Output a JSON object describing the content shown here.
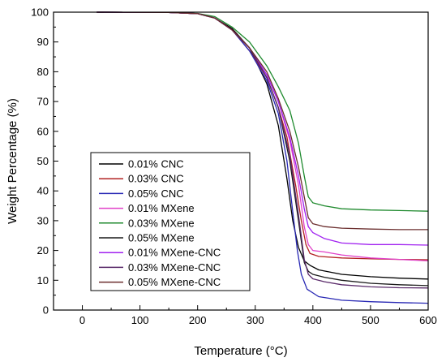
{
  "chart_data": {
    "type": "line",
    "xlabel": "Temperature (°C)",
    "ylabel": "Weight Percentage (%)",
    "xlim": [
      -50,
      600
    ],
    "ylim": [
      0,
      100
    ],
    "xticks": [
      0,
      100,
      200,
      300,
      400,
      500,
      600
    ],
    "yticks": [
      0,
      10,
      20,
      30,
      40,
      50,
      60,
      70,
      80,
      90,
      100
    ],
    "grid": false,
    "legend_position": "lower-left",
    "series": [
      {
        "name": "0.01% CNC",
        "color": "#000000",
        "x": [
          25,
          150,
          200,
          230,
          260,
          290,
          320,
          340,
          355,
          365,
          375,
          385,
          395,
          410,
          450,
          500,
          550,
          600
        ],
        "y": [
          100,
          99.9,
          99.5,
          98,
          94.5,
          88,
          76,
          62,
          44,
          30,
          21,
          16.5,
          15,
          13.5,
          12,
          11.2,
          10.7,
          10.4
        ]
      },
      {
        "name": "0.03% CNC",
        "color": "#b22222",
        "x": [
          25,
          150,
          200,
          230,
          260,
          290,
          320,
          340,
          355,
          370,
          380,
          388,
          395,
          410,
          450,
          500,
          550,
          600
        ],
        "y": [
          100,
          99.9,
          99.5,
          98,
          94,
          87,
          78,
          68,
          58,
          42,
          30,
          22,
          19,
          18,
          17.5,
          17.2,
          17,
          16.9
        ]
      },
      {
        "name": "0.05% CNC",
        "color": "#2828b4",
        "x": [
          25,
          150,
          200,
          230,
          260,
          290,
          320,
          340,
          355,
          365,
          373,
          380,
          390,
          410,
          450,
          500,
          550,
          600
        ],
        "y": [
          100,
          99.9,
          99.5,
          98,
          94,
          87,
          77,
          66,
          50,
          33,
          20,
          12,
          7,
          4.5,
          3.3,
          2.8,
          2.5,
          2.3
        ]
      },
      {
        "name": "0.01% MXene",
        "color": "#e040c8",
        "x": [
          25,
          150,
          200,
          230,
          260,
          290,
          320,
          340,
          360,
          375,
          385,
          392,
          400,
          420,
          450,
          500,
          550,
          600
        ],
        "y": [
          100,
          99.9,
          99.5,
          98,
          94,
          88,
          79,
          70,
          57,
          42,
          28,
          22,
          20,
          19.5,
          18.5,
          17.5,
          17,
          16.5
        ]
      },
      {
        "name": "0.03% MXene",
        "color": "#1f8a2e",
        "x": [
          25,
          150,
          200,
          230,
          260,
          290,
          320,
          340,
          360,
          375,
          385,
          392,
          400,
          420,
          450,
          500,
          550,
          600
        ],
        "y": [
          100,
          99.9,
          99.6,
          98.5,
          95,
          90,
          82,
          75,
          67,
          56,
          45,
          38,
          36,
          35,
          34,
          33.6,
          33.4,
          33.2
        ]
      },
      {
        "name": "0.05% MXene",
        "color": "#1a1a1a",
        "x": [
          25,
          150,
          200,
          230,
          260,
          290,
          320,
          340,
          360,
          375,
          385,
          392,
          400,
          420,
          450,
          500,
          550,
          600
        ],
        "y": [
          100,
          99.9,
          99.5,
          98,
          94,
          88,
          78,
          68,
          50,
          30,
          16,
          13,
          12,
          11,
          10,
          9,
          8.5,
          8.2
        ]
      },
      {
        "name": "0.01% MXene-CNC",
        "color": "#a020f0",
        "x": [
          25,
          150,
          200,
          230,
          260,
          290,
          320,
          340,
          360,
          375,
          385,
          392,
          400,
          420,
          450,
          500,
          550,
          600
        ],
        "y": [
          100,
          99.9,
          99.5,
          98,
          94,
          88,
          79,
          70,
          58,
          45,
          34,
          28,
          26,
          24,
          22.5,
          22,
          22,
          21.8
        ]
      },
      {
        "name": "0.03% MXene-CNC",
        "color": "#5a2a6a",
        "x": [
          25,
          150,
          200,
          230,
          260,
          290,
          320,
          340,
          360,
          375,
          385,
          392,
          400,
          420,
          450,
          500,
          550,
          600
        ],
        "y": [
          100,
          99.9,
          99.5,
          98,
          94,
          88,
          78,
          68,
          52,
          32,
          17,
          12,
          10.5,
          9.5,
          8.5,
          7.8,
          7.5,
          7.4
        ]
      },
      {
        "name": "0.05% MXene-CNC",
        "color": "#6b2e2e",
        "x": [
          25,
          150,
          200,
          230,
          260,
          290,
          320,
          340,
          360,
          375,
          385,
          392,
          400,
          420,
          450,
          500,
          550,
          600
        ],
        "y": [
          100,
          99.9,
          99.5,
          98,
          94,
          88,
          80,
          71,
          60,
          48,
          38,
          31,
          29,
          28,
          27.5,
          27.2,
          27,
          27
        ]
      }
    ]
  }
}
